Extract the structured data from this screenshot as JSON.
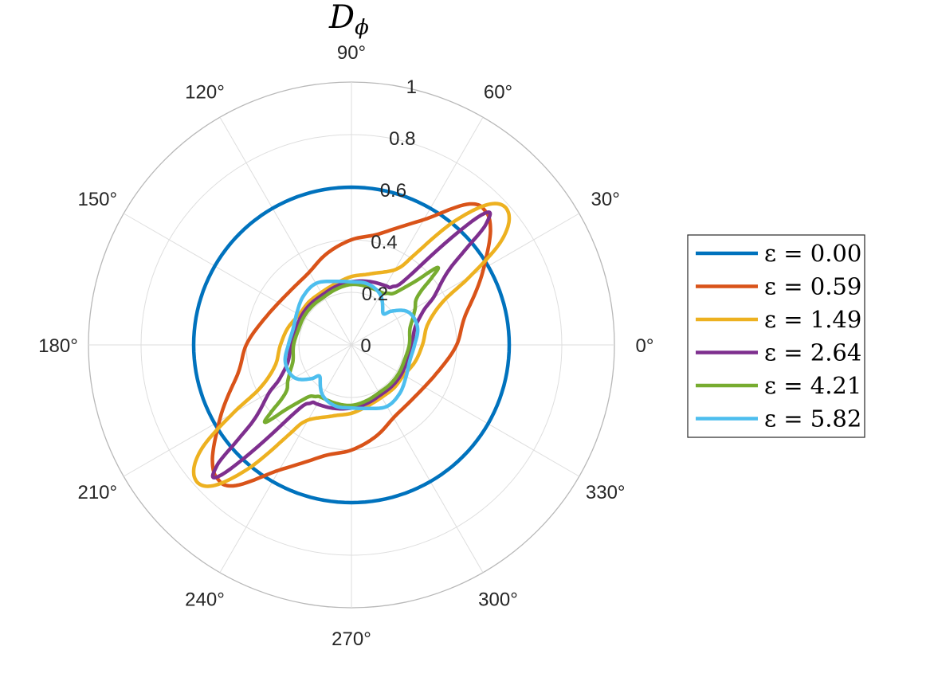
{
  "chart_data": {
    "type": "polar-line",
    "title": {
      "main": "D",
      "subscript": "ϕ"
    },
    "r_lim": [
      0,
      1
    ],
    "r_ticks": [
      "0",
      "0.2",
      "0.4",
      "0.6",
      "0.8",
      "1"
    ],
    "theta_ticks": [
      "0°",
      "30°",
      "60°",
      "90°",
      "120°",
      "150°",
      "180°",
      "210°",
      "240°",
      "270°",
      "300°",
      "330°"
    ],
    "grid": true,
    "legend_position": "right",
    "series": [
      {
        "name": "ε = 0.00",
        "color": "#0072BD",
        "theta_deg": [
          0,
          30,
          60,
          90,
          120,
          150,
          180,
          210,
          240,
          270,
          300,
          330
        ],
        "r": [
          0.6,
          0.6,
          0.6,
          0.6,
          0.6,
          0.6,
          0.6,
          0.6,
          0.6,
          0.6,
          0.6,
          0.6
        ]
      },
      {
        "name": "ε = 0.59",
        "color": "#D95319",
        "theta_deg": [
          0,
          15,
          30,
          40,
          45,
          50,
          60,
          75,
          90,
          105,
          120,
          135,
          150,
          165,
          180
        ],
        "r": [
          0.4,
          0.45,
          0.58,
          0.69,
          0.72,
          0.7,
          0.55,
          0.44,
          0.4,
          0.36,
          0.32,
          0.31,
          0.32,
          0.35,
          0.4
        ]
      },
      {
        "name": "ε = 1.49",
        "color": "#EDB120",
        "theta_deg": [
          0,
          15,
          25,
          30,
          35,
          40,
          45,
          50,
          55,
          60,
          75,
          90,
          105,
          120,
          135,
          150,
          165,
          180
        ],
        "r": [
          0.27,
          0.3,
          0.38,
          0.52,
          0.7,
          0.78,
          0.76,
          0.62,
          0.42,
          0.33,
          0.28,
          0.26,
          0.24,
          0.23,
          0.23,
          0.23,
          0.25,
          0.27
        ]
      },
      {
        "name": "ε = 2.64",
        "color": "#7E2F8E",
        "theta_deg": [
          0,
          15,
          25,
          30,
          35,
          38,
          40,
          42,
          45,
          50,
          55,
          60,
          75,
          90,
          105,
          120,
          135,
          150,
          165,
          180
        ],
        "r": [
          0.23,
          0.25,
          0.3,
          0.36,
          0.42,
          0.48,
          0.57,
          0.69,
          0.7,
          0.34,
          0.27,
          0.26,
          0.25,
          0.24,
          0.23,
          0.22,
          0.22,
          0.22,
          0.22,
          0.23
        ]
      },
      {
        "name": "ε = 4.21",
        "color": "#77AC30",
        "theta_deg": [
          0,
          15,
          25,
          30,
          35,
          38,
          40,
          42,
          45,
          50,
          55,
          60,
          75,
          90,
          105,
          120,
          135,
          150,
          165,
          180
        ],
        "r": [
          0.22,
          0.23,
          0.26,
          0.28,
          0.3,
          0.34,
          0.4,
          0.44,
          0.34,
          0.26,
          0.24,
          0.23,
          0.23,
          0.23,
          0.22,
          0.21,
          0.21,
          0.21,
          0.21,
          0.22
        ]
      },
      {
        "name": "ε = 5.82",
        "color": "#4DBEEE",
        "theta_deg": [
          0,
          15,
          30,
          40,
          45,
          60,
          75,
          90,
          105,
          120,
          135,
          150,
          165,
          180
        ],
        "r": [
          0.24,
          0.26,
          0.25,
          0.2,
          0.17,
          0.22,
          0.24,
          0.24,
          0.25,
          0.27,
          0.26,
          0.24,
          0.23,
          0.22
        ]
      }
    ]
  }
}
